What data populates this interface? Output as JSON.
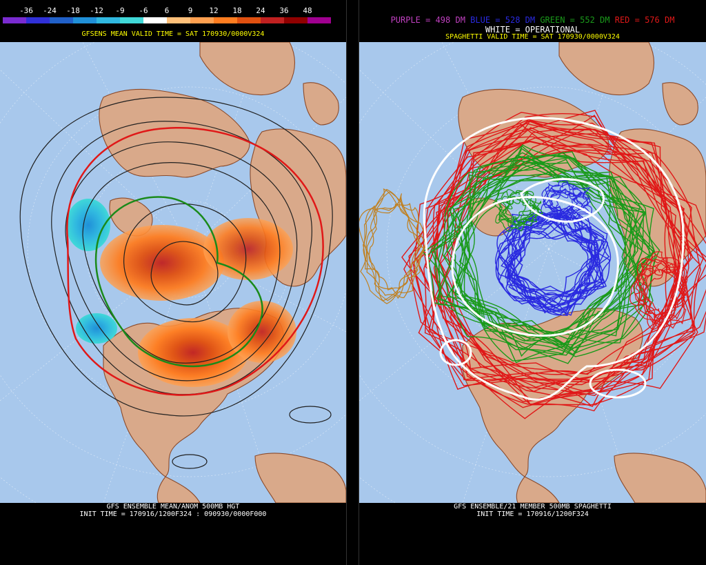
{
  "color_scale": {
    "labels": [
      "-36",
      "-24",
      "-18",
      "-12",
      "-9",
      "-6",
      "6",
      "9",
      "12",
      "18",
      "24",
      "36",
      "48"
    ],
    "colors": [
      "#7a2bd0",
      "#3030d8",
      "#2060c8",
      "#2090d8",
      "#30b8e0",
      "#40d8d8",
      "#ffffff",
      "#ffc07a",
      "#ffa050",
      "#ff7d20",
      "#e05010",
      "#c02020",
      "#900000",
      "#a00090"
    ]
  },
  "left": {
    "header": "GFSENS MEAN VALID TIME = SAT 170930/0000V324",
    "footer_line1": "GFS ENSEMBLE MEAN/ANOM 500MB HGT",
    "footer_line2": "INIT TIME = 170916/1200F324 : 090930/0000F000"
  },
  "right": {
    "legend": {
      "purple": "PURPLE = 498 DM",
      "blue": "BLUE = 528 DM",
      "green": "GREEN = 552 DM",
      "red": "RED = 576 DM",
      "white": "WHITE = OPERATIONAL"
    },
    "header": "SPAGHETTI VALID TIME = SAT 170930/0000V324",
    "footer_line1": "GFS ENSEMBLE/21 MEMBER 500MB SPAGHETTI",
    "footer_line2": "INIT TIME = 170916/1200F324"
  },
  "colors": {
    "ocean": "#a8c8ec",
    "land": "#d9a98a",
    "border": "#8b4a2a",
    "title_yellow": "#ffff00"
  }
}
